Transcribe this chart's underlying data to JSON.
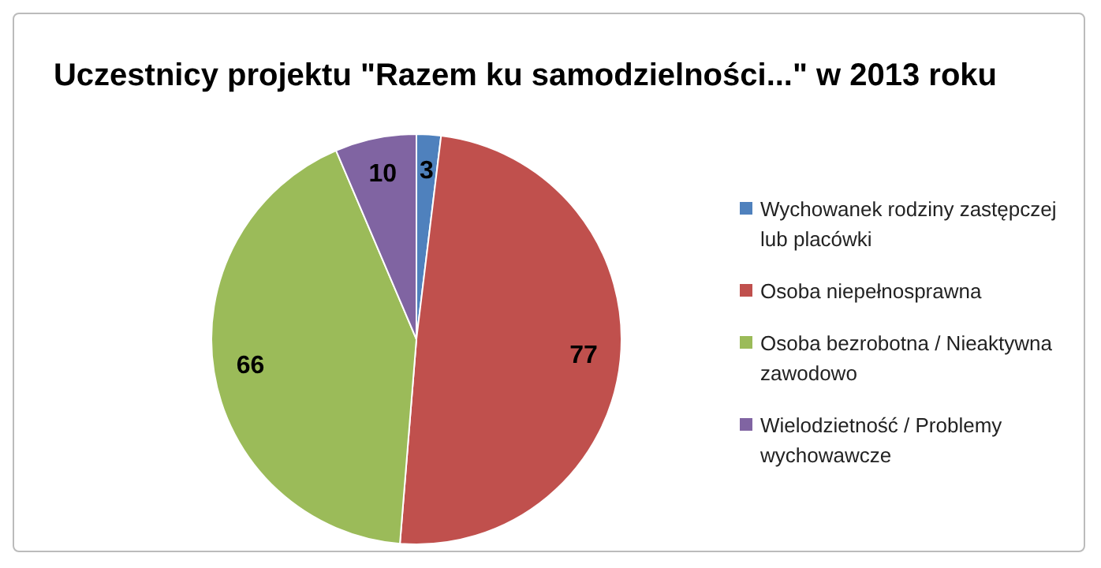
{
  "chart_data": {
    "type": "pie",
    "title": "Uczestnicy projektu \"Razem ku samodzielności...\" w 2013 roku",
    "categories": [
      "Wychowanek rodziny zastępczej lub placówki",
      "Osoba niepełnosprawna",
      "Osoba bezrobotna / Nieaktywna zawodowo",
      "Wielodzietność / Problemy wychowawcze"
    ],
    "values": [
      3,
      77,
      66,
      10
    ],
    "colors": [
      "#4f81bd",
      "#c0504d",
      "#9bbb59",
      "#8064a2"
    ],
    "data_labels": true,
    "legend": "right"
  }
}
